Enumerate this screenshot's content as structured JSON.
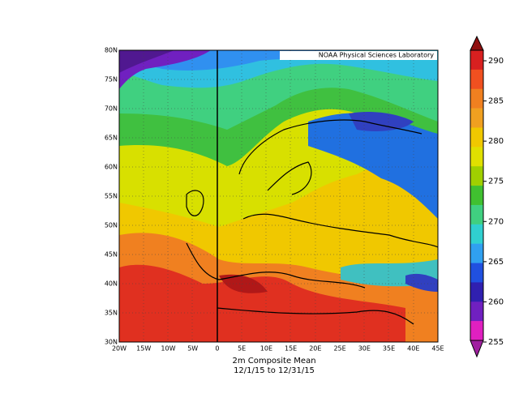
{
  "map": {
    "credit": "NOAA Physical Sciences Laboratory",
    "title": "2m   Composite Mean",
    "date_range": "12/1/15  to 12/31/15",
    "lat_labels": [
      "80N",
      "75N",
      "70N",
      "65N",
      "60N",
      "55N",
      "50N",
      "45N",
      "40N",
      "35N",
      "30N"
    ],
    "lon_labels": [
      "20W",
      "15W",
      "10W",
      "5W",
      "0",
      "5E",
      "10E",
      "15E",
      "20E",
      "25E",
      "30E",
      "35E",
      "40E",
      "45E"
    ],
    "colorbar": {
      "labels": [
        290,
        285,
        280,
        275,
        270,
        265,
        260,
        255
      ]
    }
  }
}
